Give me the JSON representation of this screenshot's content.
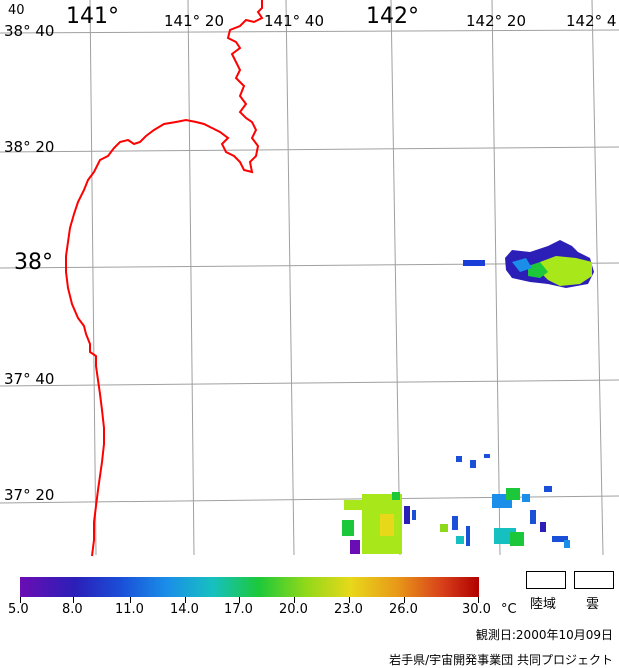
{
  "map": {
    "top_longitude_labels": [
      "40",
      "141°",
      "141° 20",
      "141° 40",
      "142°",
      "142° 20",
      "142° 4"
    ],
    "latitude_labels": [
      "38° 40",
      "38° 20",
      "38°",
      "37° 40",
      "37° 20"
    ],
    "coastline_color": "#ff0000",
    "grid_color": "#a0a0a0"
  },
  "colorbar": {
    "tick_labels": [
      "5.0",
      "8.0",
      "11.0",
      "14.0",
      "17.0",
      "20.0",
      "23.0",
      "26.0",
      "30.0"
    ],
    "unit": "°C"
  },
  "legend": {
    "land_label": "陸域",
    "cloud_label": "雲"
  },
  "footer": {
    "observation_date": "観測日:2000年10月09日",
    "credit": "岩手県/宇宙開発事業団 共同プロジェクト"
  }
}
